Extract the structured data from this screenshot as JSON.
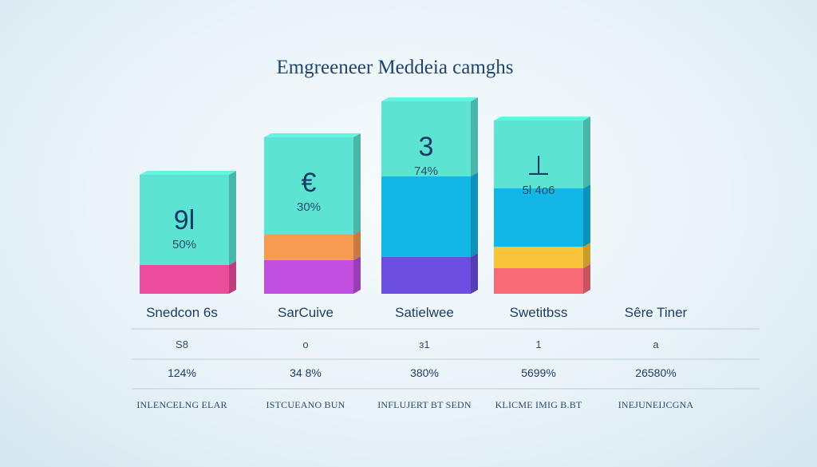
{
  "title": "Emgreeneer Meddeia camghs",
  "colors": {
    "teal": "#5ce3d1",
    "blue": "#12b7e8",
    "pink": "#ec4c9c",
    "orange": "#f79a52",
    "magenta": "#c04fe0",
    "purple": "#6b4ee0",
    "yellow": "#f7c43a",
    "coral": "#f96a78"
  },
  "chart_data": {
    "type": "bar",
    "stacked": true,
    "categories": [
      "Snedcon 6s",
      "SarCuive",
      "Satielwee",
      "Swetitbss"
    ],
    "bars": [
      {
        "big_label": "9l",
        "pct_label": "50%",
        "segments": [
          {
            "color": "pink",
            "value": 36
          },
          {
            "color": "teal",
            "value": 113
          }
        ]
      },
      {
        "big_label": "€",
        "pct_label": "30%",
        "segments": [
          {
            "color": "magenta",
            "value": 42
          },
          {
            "color": "orange",
            "value": 32
          },
          {
            "color": "teal",
            "value": 122
          }
        ]
      },
      {
        "big_label": "3",
        "pct_label": "74%",
        "segments": [
          {
            "color": "purple",
            "value": 46
          },
          {
            "color": "blue",
            "value": 101
          },
          {
            "color": "teal",
            "value": 94
          }
        ]
      },
      {
        "big_label": "⊥",
        "pct_label": "5l 4o6",
        "segments": [
          {
            "color": "coral",
            "value": 32
          },
          {
            "color": "yellow",
            "value": 27
          },
          {
            "color": "blue",
            "value": 73
          },
          {
            "color": "teal",
            "value": 85
          }
        ]
      }
    ]
  },
  "table": {
    "columns": [
      "Snedcon 6s",
      "SarCuive",
      "Satielwee",
      "Swetitbss",
      "Sêre Tiner"
    ],
    "row1": [
      "S8",
      "o",
      "ɜ1",
      "1",
      "a"
    ],
    "row2": [
      "124%",
      "34 8%",
      "380%",
      "5699%",
      "26580%"
    ],
    "row3": [
      "INLENCELNG ELAR",
      "ISTCUEANO BUN",
      "INFLUJERT BT SEDN",
      "KLICME IMIG B.BT",
      "INEJUNEIJCGNA"
    ]
  }
}
